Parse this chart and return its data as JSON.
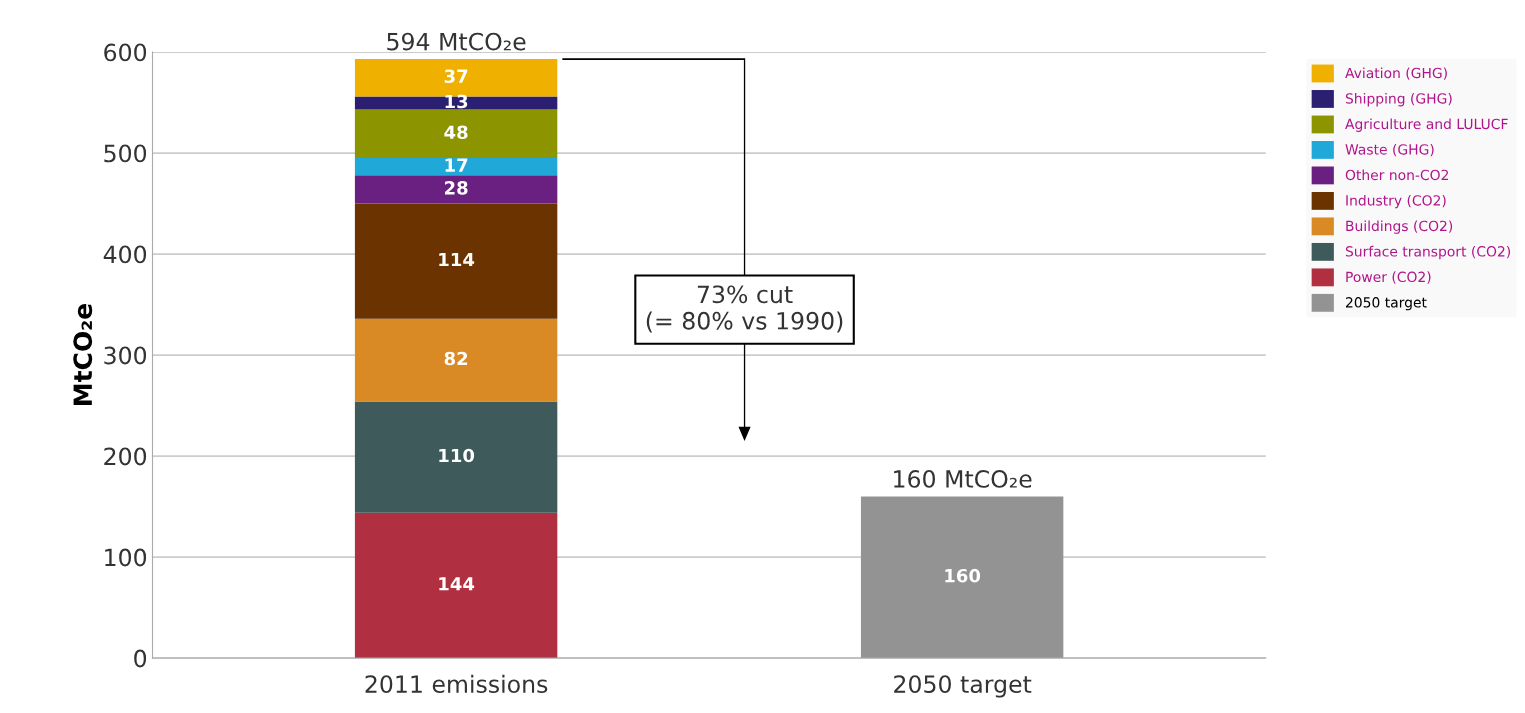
{
  "chart_data": {
    "type": "bar",
    "stacked": true,
    "ylabel": "MtCO₂e",
    "categories": [
      "2011 emissions",
      "2050 target"
    ],
    "series": [
      {
        "name": "Power (CO2)",
        "color": "#b03042",
        "values": [
          144,
          null
        ]
      },
      {
        "name": "Surface transport (CO2)",
        "color": "#3f5a5a",
        "values": [
          110,
          null
        ]
      },
      {
        "name": "Buildings (CO2)",
        "color": "#d98a25",
        "values": [
          82,
          null
        ]
      },
      {
        "name": "Industry (CO2)",
        "color": "#6b3300",
        "values": [
          114,
          null
        ]
      },
      {
        "name": "Other non-CO2",
        "color": "#6a2080",
        "values": [
          28,
          null
        ]
      },
      {
        "name": "Waste (GHG)",
        "color": "#20a8d8",
        "values": [
          17,
          null
        ]
      },
      {
        "name": "Agriculture and LULUCF",
        "color": "#8c9400",
        "values": [
          48,
          null
        ]
      },
      {
        "name": "Shipping (GHG)",
        "color": "#2a1f70",
        "values": [
          13,
          null
        ]
      },
      {
        "name": "Aviation (GHG)",
        "color": "#f0b000",
        "values": [
          37,
          null
        ]
      },
      {
        "name": "2050 target",
        "color": "#939393",
        "values": [
          null,
          160
        ]
      }
    ],
    "totals": [
      "594 MtCO₂e",
      "160 MtCO₂e"
    ],
    "data_labels": true,
    "annotations": [
      "73% cut\n(= 80% vs 1990)"
    ],
    "ylim": [
      0,
      600
    ],
    "yticks": [
      0,
      100,
      200,
      300,
      400,
      500,
      600
    ],
    "grid": "y",
    "legend": "top right"
  }
}
